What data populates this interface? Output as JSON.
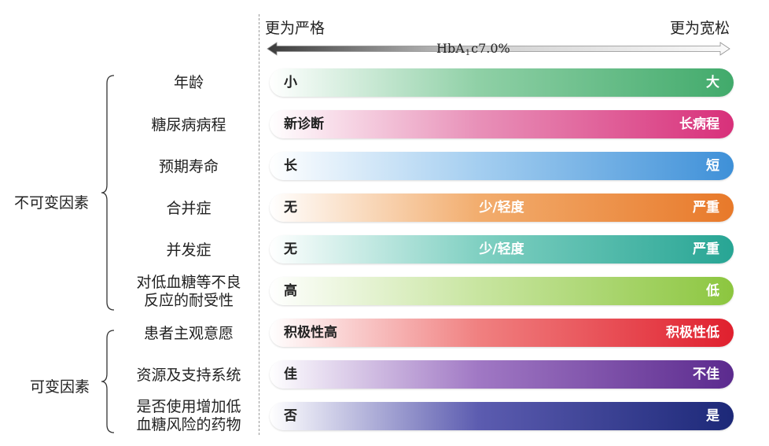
{
  "header": {
    "left_label": "更为严格",
    "right_label": "更为宽松",
    "axis_main": "HbA",
    "axis_sub": "1",
    "axis_tail": "c7.0%"
  },
  "groups": {
    "fixed": "不可变因素",
    "modifiable": "可变因素"
  },
  "rows": [
    {
      "label_lines": [
        "年龄"
      ],
      "left": "小",
      "mid": "",
      "right": "大",
      "gradient": [
        "#ffffff",
        "#8fd0a6",
        "#41aa6b"
      ]
    },
    {
      "label_lines": [
        "糖尿病病程"
      ],
      "left": "新诊断",
      "mid": "",
      "right": "长病程",
      "gradient": [
        "#ffffff",
        "#e890b8",
        "#d8307a"
      ]
    },
    {
      "label_lines": [
        "预期寿命"
      ],
      "left": "长",
      "mid": "",
      "right": "短",
      "gradient": [
        "#ffffff",
        "#a4cef0",
        "#3e90d8"
      ]
    },
    {
      "label_lines": [
        "合并症"
      ],
      "left": "无",
      "mid": "少/轻度",
      "right": "严重",
      "gradient": [
        "#ffffff",
        "#f2ad6e",
        "#e8792a"
      ]
    },
    {
      "label_lines": [
        "并发症"
      ],
      "left": "无",
      "mid": "少/轻度",
      "right": "严重",
      "gradient": [
        "#ffffff",
        "#80d0c2",
        "#27a594"
      ]
    },
    {
      "label_lines": [
        "对低血糖等不良",
        "反应的耐受性"
      ],
      "left": "高",
      "mid": "",
      "right": "低",
      "gradient": [
        "#ffffff",
        "#c8e5a0",
        "#8cc63f"
      ]
    },
    {
      "label_lines": [
        "患者主观意愿"
      ],
      "left": "积极性高",
      "mid": "",
      "right": "积极性低",
      "gradient": [
        "#ffffff",
        "#f08080",
        "#e0202e"
      ]
    },
    {
      "label_lines": [
        "资源及支持系统"
      ],
      "left": "佳",
      "mid": "",
      "right": "不佳",
      "gradient": [
        "#ffffff",
        "#a078c4",
        "#5b2a8e"
      ]
    },
    {
      "label_lines": [
        "是否使用增加低",
        "血糖风险的药物"
      ],
      "left": "否",
      "mid": "",
      "right": "是",
      "gradient": [
        "#ffffff",
        "#5c5cb0",
        "#1c2878"
      ]
    }
  ]
}
